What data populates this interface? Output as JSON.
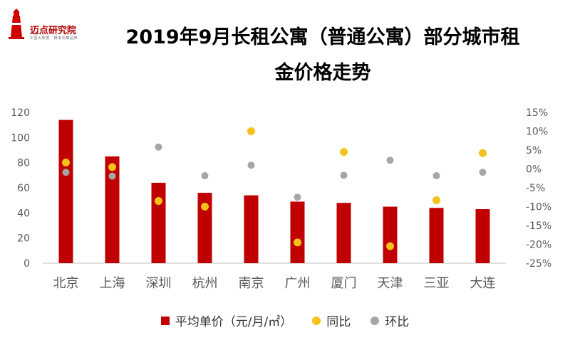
{
  "header": {
    "logo_text": "迈点研究院",
    "logo_sub": "中国大数据 · 精准洞察品牌",
    "title_line1": "2019年9月长租公寓（普通公寓）部分城市租",
    "title_line2": "金价格走势"
  },
  "colors": {
    "bar": "#c00000",
    "yoy": "#f5c11a",
    "mom": "#a6a6a6",
    "axis_text": "#595959"
  },
  "chart_data": {
    "type": "bar",
    "categories": [
      "北京",
      "上海",
      "深圳",
      "杭州",
      "南京",
      "广州",
      "厦门",
      "天津",
      "三亚",
      "大连"
    ],
    "series": [
      {
        "name": "平均单价（元/月/㎡）",
        "type": "bar",
        "axis": "left",
        "values": [
          114,
          85,
          64,
          56,
          54,
          49,
          48,
          45,
          44,
          43
        ]
      },
      {
        "name": "同比",
        "type": "scatter",
        "axis": "right",
        "values": [
          0.017,
          0.005,
          -0.085,
          -0.1,
          0.1,
          -0.195,
          0.045,
          -0.205,
          -0.083,
          0.042
        ]
      },
      {
        "name": "环比",
        "type": "scatter",
        "axis": "right",
        "values": [
          -0.009,
          -0.019,
          0.058,
          -0.018,
          0.01,
          -0.075,
          -0.017,
          0.023,
          -0.018,
          -0.009
        ]
      }
    ],
    "y_left": {
      "min": 0,
      "max": 120,
      "ticks": [
        "0",
        "20",
        "40",
        "60",
        "80",
        "100",
        "120"
      ]
    },
    "y_right": {
      "min": -0.25,
      "max": 0.15,
      "ticks": [
        "-25%",
        "-20%",
        "-15%",
        "-10%",
        "-5%",
        "0%",
        "5%",
        "10%",
        "15%"
      ]
    },
    "grid": false,
    "legend_position": "bottom"
  }
}
